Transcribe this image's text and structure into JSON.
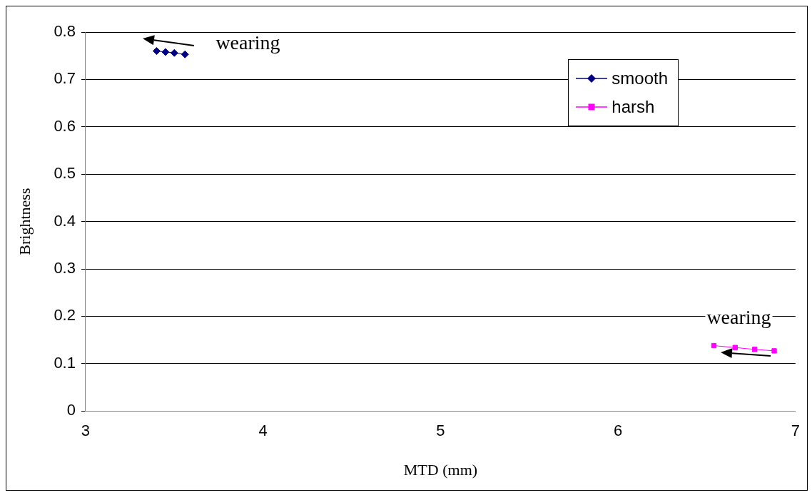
{
  "chart_data": {
    "type": "line",
    "xlabel": "MTD (mm)",
    "ylabel": "Brightness",
    "series": [
      {
        "name": "smooth",
        "color": "#000080",
        "marker": "diamond",
        "x": [
          3.4,
          3.45,
          3.5,
          3.56
        ],
        "values": [
          0.76,
          0.758,
          0.756,
          0.753
        ]
      },
      {
        "name": "harsh",
        "color": "#ff00ff",
        "marker": "square",
        "x": [
          6.54,
          6.66,
          6.77,
          6.88
        ],
        "values": [
          0.138,
          0.134,
          0.13,
          0.127
        ]
      }
    ],
    "xlim": [
      3,
      7
    ],
    "xticks": [
      3,
      4,
      5,
      6,
      7
    ],
    "ylim": [
      0,
      0.8
    ],
    "yticks": [
      0,
      0.1,
      0.2,
      0.3,
      0.4,
      0.5,
      0.6,
      0.7,
      0.8
    ],
    "grid": "y",
    "legend": "top right",
    "annotations": [
      "wearing",
      "wearing"
    ]
  }
}
